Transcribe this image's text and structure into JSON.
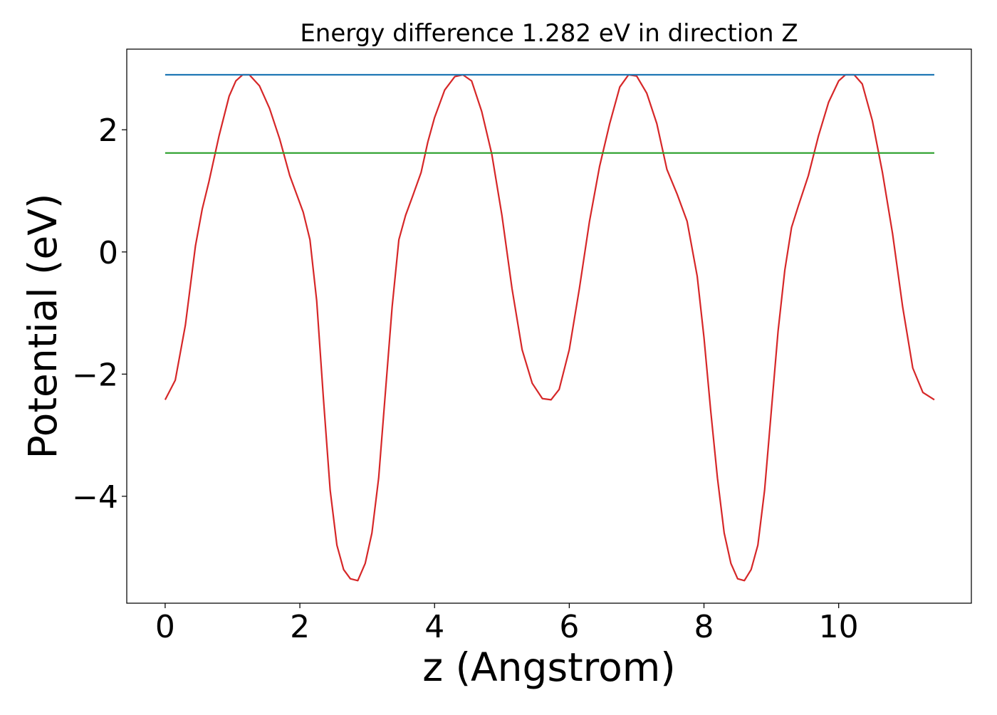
{
  "chart_data": {
    "type": "line",
    "title": "Energy difference 1.282 eV in direction Z",
    "xlabel": "z (Angstrom)",
    "ylabel": "Potential (eV)",
    "xlim": [
      -0.57,
      11.97
    ],
    "ylim": [
      -5.75,
      3.32
    ],
    "xticks": [
      0,
      2,
      4,
      6,
      8,
      10
    ],
    "xtick_labels": [
      "0",
      "2",
      "4",
      "6",
      "8",
      "10"
    ],
    "yticks": [
      -4,
      -2,
      0,
      2
    ],
    "ytick_labels": [
      "−4",
      "−2",
      "0",
      "2"
    ],
    "grid": false,
    "series": [
      {
        "color": "#d62728",
        "x": [
          0.0,
          0.15,
          0.3,
          0.45,
          0.55,
          0.65,
          0.8,
          0.95,
          1.05,
          1.15,
          1.25,
          1.4,
          1.55,
          1.7,
          1.85,
          1.95,
          2.05,
          2.15,
          2.25,
          2.35,
          2.45,
          2.55,
          2.65,
          2.75,
          2.86,
          2.97,
          3.07,
          3.17,
          3.27,
          3.37,
          3.47,
          3.57,
          3.67,
          3.8,
          3.9,
          4.0,
          4.15,
          4.3,
          4.42,
          4.55,
          4.7,
          4.85,
          5.0,
          5.15,
          5.3,
          5.45,
          5.6,
          5.73,
          5.85,
          6.0,
          6.15,
          6.3,
          6.45,
          6.6,
          6.75,
          6.88,
          7.0,
          7.15,
          7.3,
          7.45,
          7.6,
          7.75,
          7.9,
          8.0,
          8.1,
          8.2,
          8.3,
          8.4,
          8.5,
          8.6,
          8.7,
          8.8,
          8.9,
          9.0,
          9.1,
          9.2,
          9.3,
          9.4,
          9.55,
          9.7,
          9.85,
          10.0,
          10.1,
          10.23,
          10.35,
          10.5,
          10.65,
          10.8,
          10.95,
          11.1,
          11.25,
          11.42
        ],
        "y": [
          -2.42,
          -2.1,
          -1.2,
          0.1,
          0.7,
          1.15,
          1.9,
          2.55,
          2.8,
          2.9,
          2.9,
          2.72,
          2.35,
          1.85,
          1.25,
          0.95,
          0.65,
          0.2,
          -0.8,
          -2.4,
          -3.9,
          -4.8,
          -5.2,
          -5.35,
          -5.38,
          -5.1,
          -4.6,
          -3.7,
          -2.3,
          -0.9,
          0.2,
          0.6,
          0.9,
          1.3,
          1.8,
          2.2,
          2.65,
          2.87,
          2.9,
          2.8,
          2.3,
          1.6,
          0.6,
          -0.6,
          -1.6,
          -2.15,
          -2.4,
          -2.42,
          -2.25,
          -1.6,
          -0.6,
          0.5,
          1.4,
          2.1,
          2.7,
          2.9,
          2.88,
          2.6,
          2.1,
          1.35,
          0.95,
          0.5,
          -0.4,
          -1.4,
          -2.6,
          -3.7,
          -4.6,
          -5.1,
          -5.35,
          -5.38,
          -5.2,
          -4.8,
          -3.9,
          -2.6,
          -1.3,
          -0.3,
          0.4,
          0.75,
          1.25,
          1.9,
          2.45,
          2.8,
          2.9,
          2.9,
          2.75,
          2.15,
          1.3,
          0.3,
          -0.9,
          -1.9,
          -2.3,
          -2.42
        ]
      },
      {
        "color": "#1f77b4",
        "x": [
          0.0,
          11.42
        ],
        "y": [
          2.9,
          2.9
        ]
      },
      {
        "color": "#2ca02c",
        "x": [
          0.0,
          11.42
        ],
        "y": [
          1.62,
          1.62
        ]
      }
    ]
  }
}
